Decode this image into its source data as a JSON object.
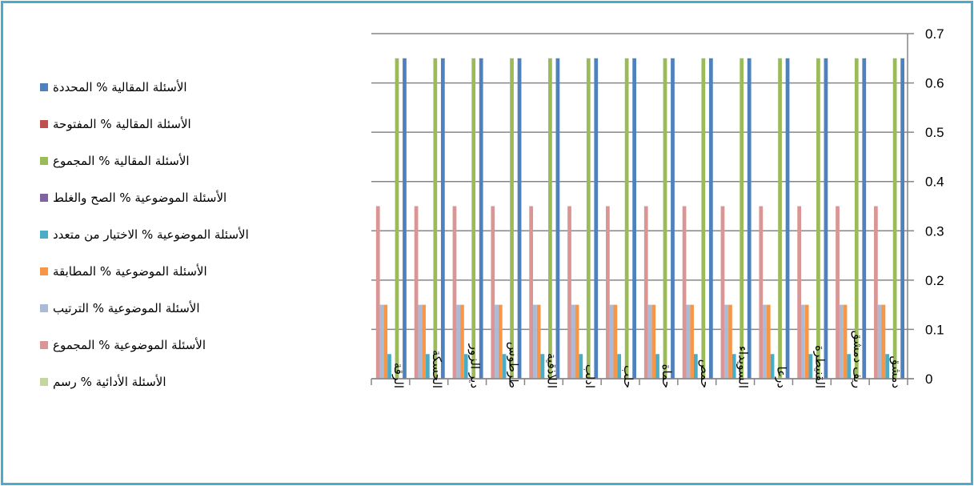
{
  "chart_data": {
    "type": "bar",
    "categories": [
      "دمشق",
      "ريف دمشق",
      "القنيطرة",
      "درعا",
      "السويداء",
      "حمص",
      "حماة",
      "حلب",
      "ادلب",
      "اللاذقية",
      "طرطوس",
      "دير الزور",
      "الحسكة",
      "الرقة"
    ],
    "ylim": [
      0,
      0.7
    ],
    "yticks": [
      "0",
      "0.1",
      "0.2",
      "0.3",
      "0.4",
      "0.5",
      "0.6",
      "0.7"
    ],
    "y_axis_position": "right",
    "grid": true,
    "legend_position": "left",
    "series": [
      {
        "name": "الأسئلة المقالية % المحددة",
        "color": "#4f81bd",
        "values": [
          0.65,
          0.65,
          0.65,
          0.65,
          0.65,
          0.65,
          0.65,
          0.65,
          0.65,
          0.65,
          0.65,
          0.65,
          0.65,
          0.65
        ]
      },
      {
        "name": "الأسئلة المقالية % المفتوحة",
        "color": "#c0504d",
        "values": [
          0,
          0,
          0,
          0,
          0,
          0,
          0,
          0,
          0,
          0,
          0,
          0,
          0,
          0
        ]
      },
      {
        "name": "الأسئلة المقالية % المجموع",
        "color": "#9bbb59",
        "values": [
          0.65,
          0.65,
          0.65,
          0.65,
          0.65,
          0.65,
          0.65,
          0.65,
          0.65,
          0.65,
          0.65,
          0.65,
          0.65,
          0.65
        ]
      },
      {
        "name": "الأسئلة الموضوعية % الصح والغلط",
        "color": "#8064a2",
        "values": [
          0,
          0,
          0,
          0,
          0,
          0,
          0,
          0,
          0,
          0,
          0,
          0,
          0,
          0
        ]
      },
      {
        "name": "الأسئلة الموضوعية % الاختيار من متعدد",
        "color": "#4bacc6",
        "values": [
          0.05,
          0.05,
          0.05,
          0.05,
          0.05,
          0.05,
          0.05,
          0.05,
          0.05,
          0.05,
          0.05,
          0.05,
          0.05,
          0.05
        ]
      },
      {
        "name": "الأسئلة الموضوعية % المطابقة",
        "color": "#f79646",
        "values": [
          0.15,
          0.15,
          0.15,
          0.15,
          0.15,
          0.15,
          0.15,
          0.15,
          0.15,
          0.15,
          0.15,
          0.15,
          0.15,
          0.15
        ]
      },
      {
        "name": "الأسئلة الموضوعية % الترتيب",
        "color": "#aabad7",
        "values": [
          0.15,
          0.15,
          0.15,
          0.15,
          0.15,
          0.15,
          0.15,
          0.15,
          0.15,
          0.15,
          0.15,
          0.15,
          0.15,
          0.15
        ]
      },
      {
        "name": "الأسئلة الموضوعية % المجموع",
        "color": "#d99694",
        "values": [
          0.35,
          0.35,
          0.35,
          0.35,
          0.35,
          0.35,
          0.35,
          0.35,
          0.35,
          0.35,
          0.35,
          0.35,
          0.35,
          0.35
        ]
      },
      {
        "name": "الأسئلة الأدائية % رسم",
        "color": "#c3d69b",
        "values": [
          0,
          0,
          0,
          0,
          0,
          0,
          0,
          0,
          0,
          0,
          0,
          0,
          0,
          0
        ]
      }
    ]
  }
}
